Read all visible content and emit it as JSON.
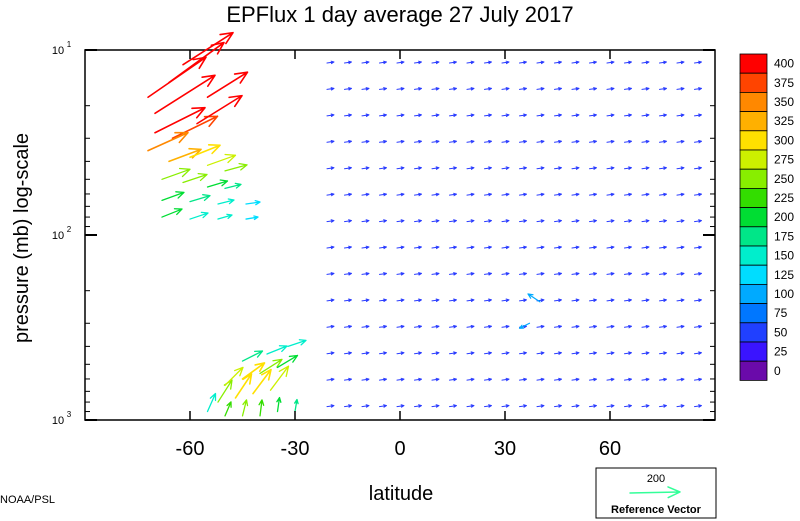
{
  "chart_data": {
    "type": "vector-field",
    "title": "EPFlux  1 day average  27 July      2017",
    "xlabel": "latitude",
    "ylabel": "pressure (mb)  log-scale",
    "credit": "NOAA/PSL",
    "xlim": [
      -90,
      90
    ],
    "ylim": [
      1000,
      10
    ],
    "yscale": "log",
    "x_ticks": [
      -60,
      -30,
      0,
      30,
      60
    ],
    "x_ticklabels": [
      "-60",
      "-30",
      "0",
      "30",
      "60"
    ],
    "y_ticks": [
      10,
      100,
      1000
    ],
    "y_ticklabels": [
      {
        "base": "10",
        "exp": "1"
      },
      {
        "base": "10",
        "exp": "2"
      },
      {
        "base": "10",
        "exp": "3"
      }
    ],
    "colorbar": {
      "levels": [
        "400",
        "375",
        "350",
        "325",
        "300",
        "275",
        "250",
        "225",
        "200",
        "175",
        "150",
        "125",
        "100",
        "75",
        "50",
        "25",
        "0"
      ],
      "colors": [
        "#ff0000",
        "#ff4400",
        "#ff8800",
        "#ffb000",
        "#ffe000",
        "#ccf000",
        "#88ee00",
        "#33dd00",
        "#00dd33",
        "#00e688",
        "#00eecc",
        "#00ddff",
        "#00aaff",
        "#0077ff",
        "#2040ff",
        "#3a14ff",
        "#6a0aaa"
      ]
    },
    "reference_vector": {
      "magnitude": "200",
      "label": "Reference Vector",
      "color": "#33ff99"
    }
  }
}
